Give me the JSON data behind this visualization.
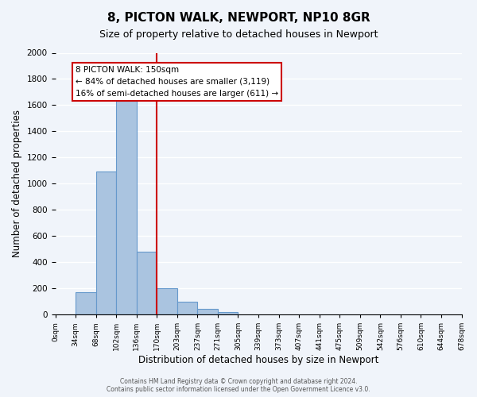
{
  "title": "8, PICTON WALK, NEWPORT, NP10 8GR",
  "subtitle": "Size of property relative to detached houses in Newport",
  "xlabel": "Distribution of detached houses by size in Newport",
  "ylabel": "Number of detached properties",
  "bin_labels": [
    "0sqm",
    "34sqm",
    "68sqm",
    "102sqm",
    "136sqm",
    "170sqm",
    "203sqm",
    "237sqm",
    "271sqm",
    "305sqm",
    "339sqm",
    "373sqm",
    "407sqm",
    "441sqm",
    "475sqm",
    "509sqm",
    "542sqm",
    "576sqm",
    "610sqm",
    "644sqm",
    "678sqm"
  ],
  "bar_values": [
    0,
    170,
    1090,
    1630,
    480,
    200,
    100,
    40,
    20,
    0,
    0,
    0,
    0,
    0,
    0,
    0,
    0,
    0,
    0,
    0
  ],
  "bar_color": "#aac4e0",
  "bar_edge_color": "#6699cc",
  "vline_x": 4.5,
  "vline_color": "#cc0000",
  "annotation_text": "8 PICTON WALK: 150sqm\n← 84% of detached houses are smaller (3,119)\n16% of semi-detached houses are larger (611) →",
  "annotation_box_color": "#ffffff",
  "annotation_box_edge_color": "#cc0000",
  "ylim": [
    0,
    2000
  ],
  "yticks": [
    0,
    200,
    400,
    600,
    800,
    1000,
    1200,
    1400,
    1600,
    1800,
    2000
  ],
  "footer_line1": "Contains HM Land Registry data © Crown copyright and database right 2024.",
  "footer_line2": "Contains public sector information licensed under the Open Government Licence v3.0.",
  "bg_color": "#f0f4fa",
  "grid_color": "#ffffff"
}
